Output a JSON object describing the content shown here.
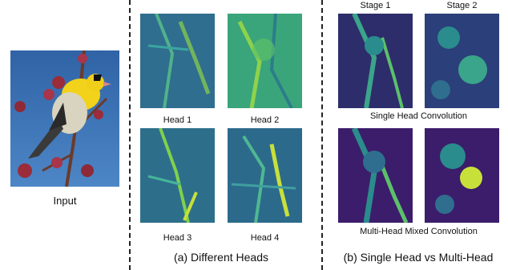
{
  "input_label": "Input",
  "heads": {
    "labels": [
      "Head 1",
      "Head 2",
      "Head 3",
      "Head 4"
    ],
    "caption": "(a) Different Heads"
  },
  "comparison": {
    "stage_labels": [
      "Stage 1",
      "Stage 2"
    ],
    "single_label": "Single Head Convolution",
    "multi_label": "Multi-Head Mixed Convolution",
    "caption": "(b) Single Head vs Multi-Head"
  },
  "colors": {
    "sky": "#3f74b8",
    "map_dark": "#3b1d6b",
    "map_mid": "#2a8c8c",
    "map_bright": "#c8e03a"
  }
}
